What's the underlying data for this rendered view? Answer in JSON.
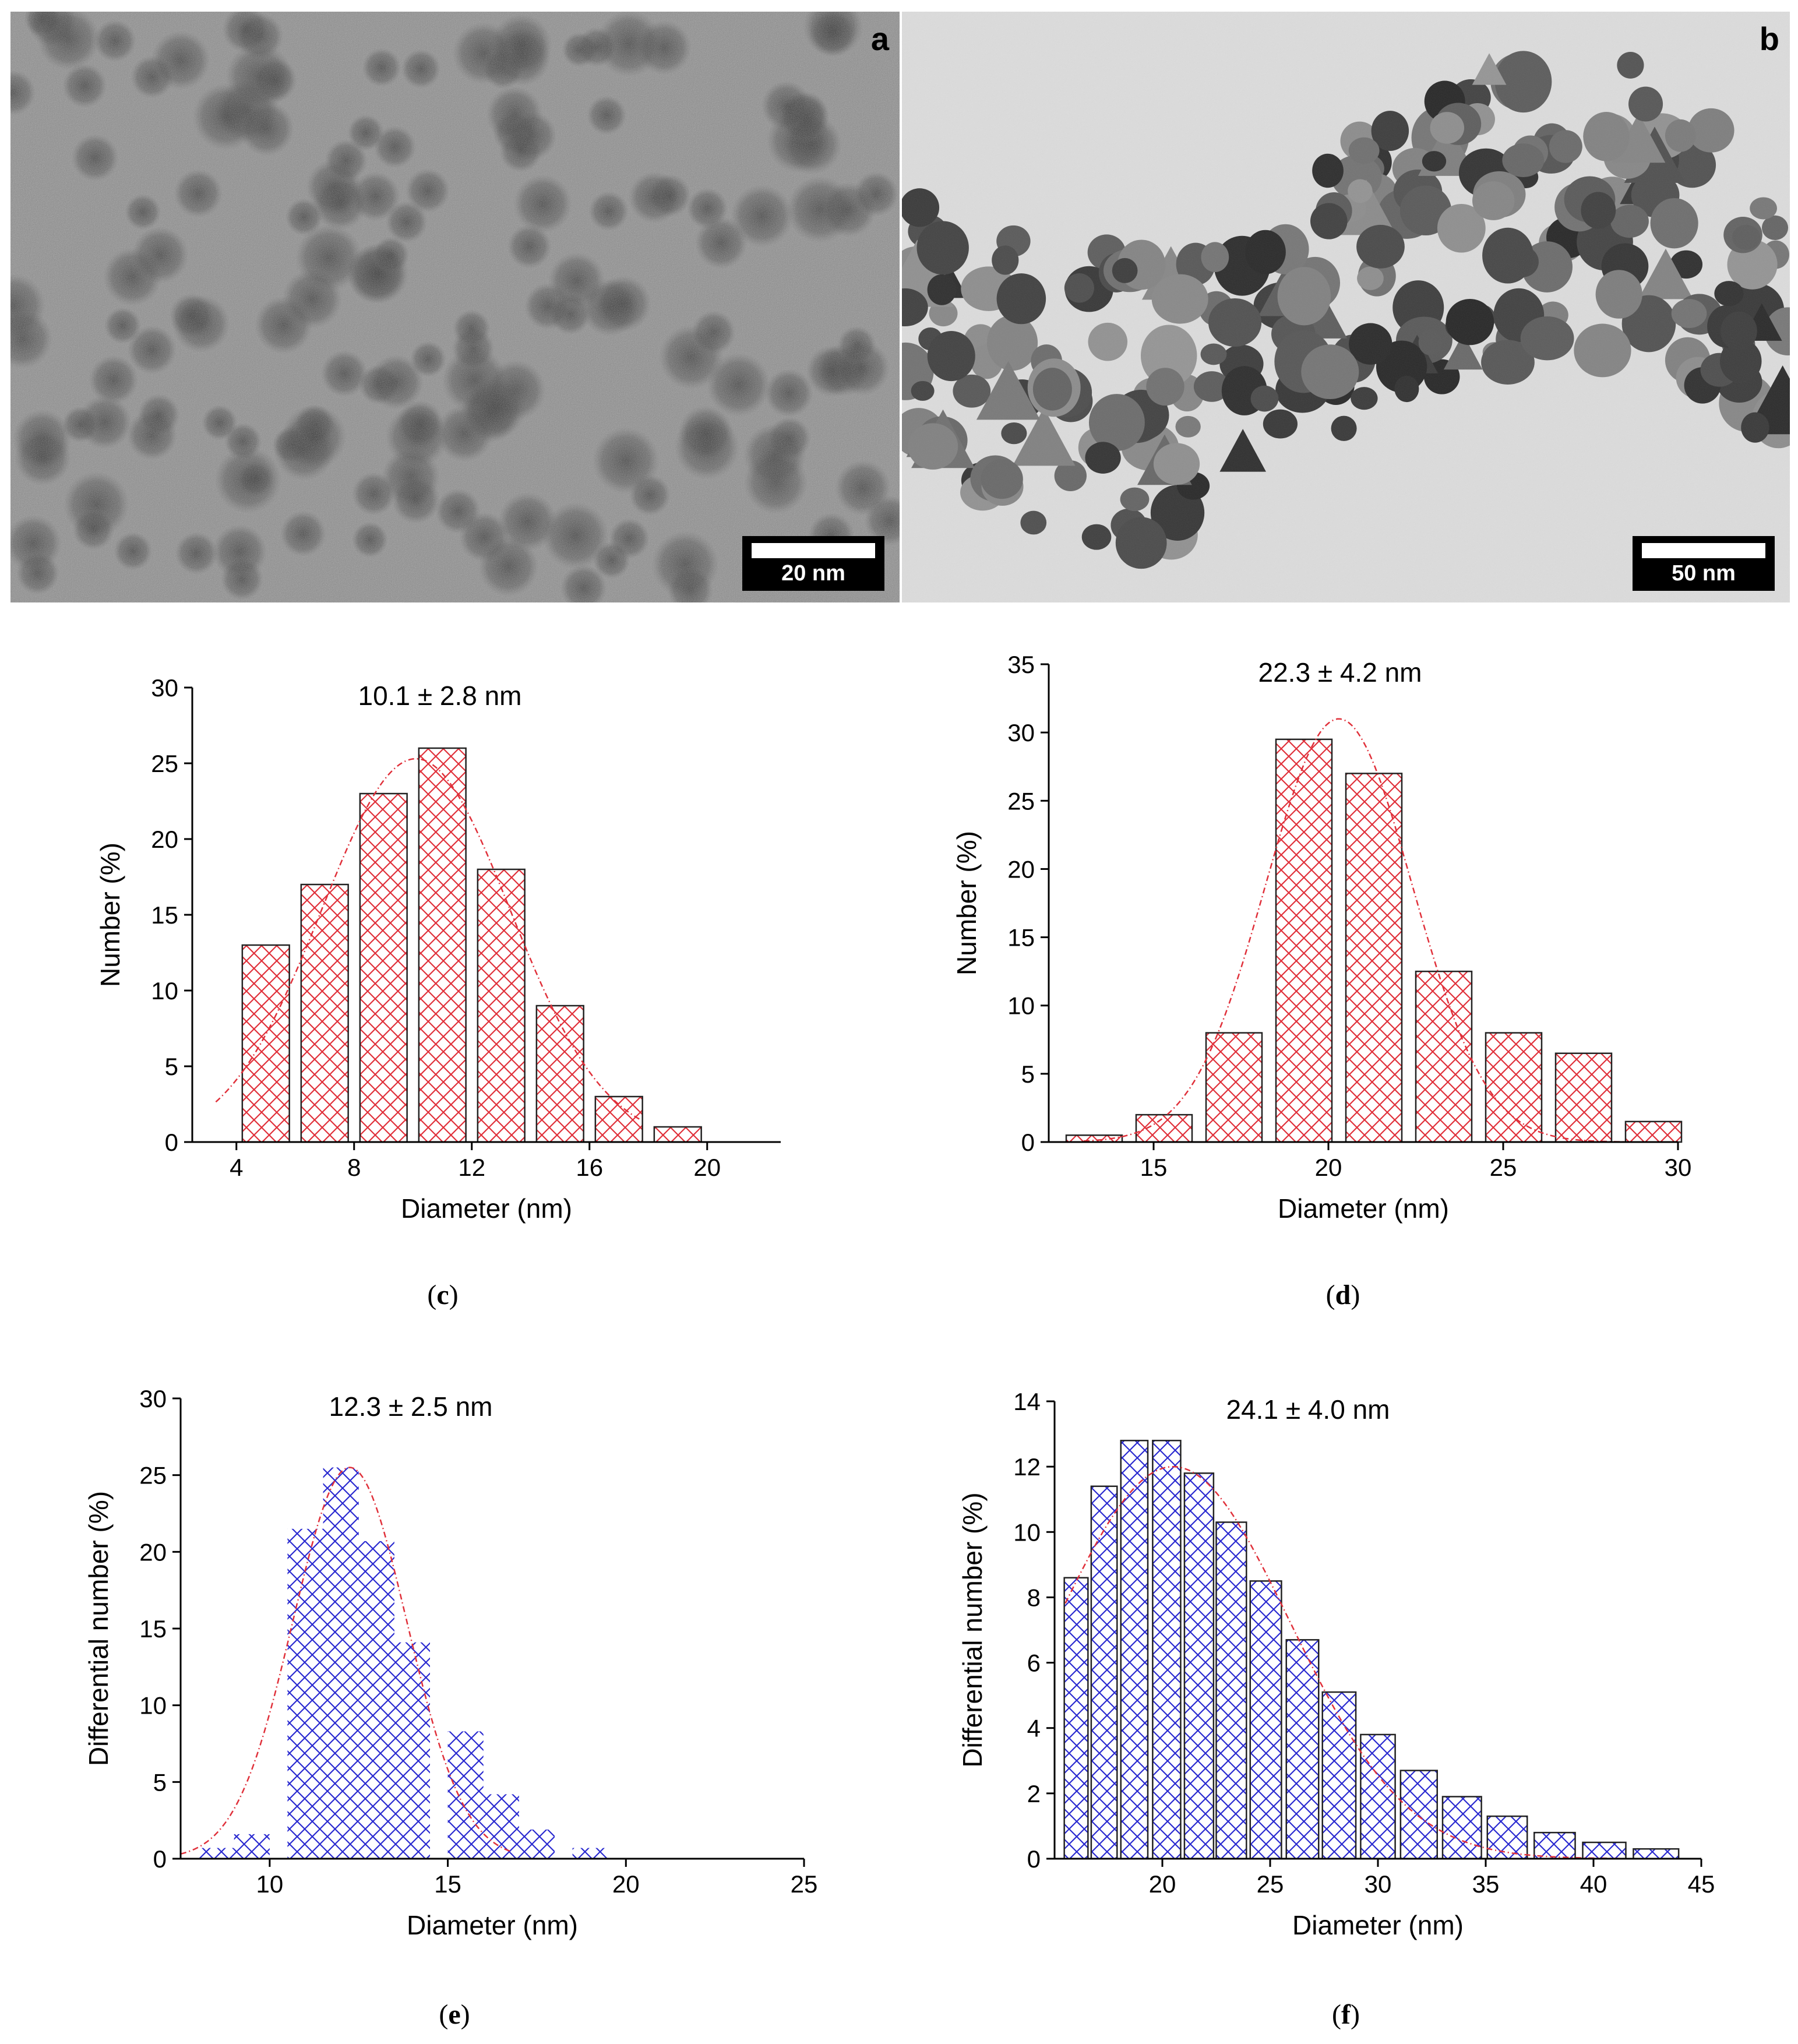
{
  "tem_images": [
    {
      "panel_label": "a",
      "scale_label": "20 nm"
    },
    {
      "panel_label": "b",
      "scale_label": "50 nm"
    }
  ],
  "captions": [
    "c",
    "d",
    "e",
    "f"
  ],
  "chart_data": [
    {
      "panel": "c",
      "type": "bar",
      "title": "10.1 ± 2.8 nm",
      "xlabel": "Diameter (nm)",
      "ylabel": "Number (%)",
      "xlim": [
        2.5,
        22.5
      ],
      "ylim": [
        0,
        30
      ],
      "xticks": [
        4,
        8,
        12,
        16,
        20
      ],
      "yticks": [
        0,
        5,
        10,
        15,
        20,
        25,
        30
      ],
      "bar_width": 1.6,
      "x": [
        5.0,
        7.0,
        9.0,
        11.0,
        13.0,
        15.0,
        17.0,
        19.0
      ],
      "values": [
        13,
        17,
        23,
        26,
        18,
        9,
        3,
        1
      ],
      "fit": {
        "mu": 10.1,
        "sigma": 3.2,
        "peak": 25.3,
        "from": 3.3,
        "to": 17.7
      },
      "colors": {
        "hatch": "#e0303a",
        "fit": "#e0303a"
      }
    },
    {
      "panel": "d",
      "type": "bar",
      "title": "22.3 ± 4.2 nm",
      "xlabel": "Diameter (nm)",
      "ylabel": "Number (%)",
      "xlim": [
        12,
        30
      ],
      "ylim": [
        0,
        35
      ],
      "xticks": [
        15,
        20,
        25,
        30
      ],
      "yticks": [
        0,
        5,
        10,
        15,
        20,
        25,
        30,
        35
      ],
      "bar_width": 1.6,
      "x": [
        13.3,
        15.3,
        17.3,
        19.3,
        21.3,
        23.3,
        25.3,
        27.3,
        29.3
      ],
      "values": [
        0.5,
        2,
        8,
        29.5,
        27,
        12.5,
        8,
        6.5,
        1.5
      ],
      "fit": {
        "mu": 20.3,
        "sigma": 2.1,
        "peak": 31,
        "from": 13.0,
        "to": 29.5
      },
      "colors": {
        "hatch": "#e0303a",
        "fit": "#e0303a"
      }
    },
    {
      "panel": "e",
      "type": "bar",
      "title": "12.3 ± 2.5 nm",
      "xlabel": "Diameter (nm)",
      "ylabel": "Differential number (%)",
      "xlim": [
        7.5,
        25
      ],
      "ylim": [
        0,
        30
      ],
      "xticks": [
        10,
        15,
        20,
        25
      ],
      "yticks": [
        0,
        5,
        10,
        15,
        20,
        25,
        30
      ],
      "bar_width": 1.0,
      "x": [
        8.5,
        9.5,
        11.0,
        12.0,
        13.0,
        14.0,
        15.5,
        16.5,
        17.5,
        19.0
      ],
      "widths": [
        1.0,
        1.0,
        1.0,
        1.0,
        1.0,
        1.0,
        1.0,
        1.0,
        1.0,
        1.0
      ],
      "values": [
        0.7,
        1.6,
        21.5,
        25.5,
        20.7,
        14.1,
        8.3,
        4.2,
        1.9,
        0.7
      ],
      "fit": {
        "mu": 12.25,
        "sigma": 1.6,
        "peak": 25.5,
        "from": 7.5,
        "to": 16.8
      },
      "colors": {
        "hatch": "#2a2ad0",
        "fit": "#e0303a"
      }
    },
    {
      "panel": "f",
      "type": "bar",
      "title": "24.1 ± 4.0 nm",
      "xlabel": "Diameter (nm)",
      "ylabel": "Differential number (%)",
      "xlim": [
        15,
        45
      ],
      "ylim": [
        0,
        14
      ],
      "xticks": [
        20,
        25,
        30,
        35,
        40,
        45
      ],
      "yticks": [
        0,
        2,
        4,
        6,
        8,
        10,
        12,
        14
      ],
      "x": [
        16.0,
        17.3,
        18.7,
        20.2,
        21.7,
        23.2,
        24.8,
        26.5,
        28.2,
        30.0,
        31.9,
        33.9,
        36.0,
        38.2,
        40.5,
        42.9
      ],
      "widths": [
        1.1,
        1.2,
        1.25,
        1.3,
        1.35,
        1.4,
        1.45,
        1.5,
        1.55,
        1.6,
        1.7,
        1.8,
        1.85,
        1.9,
        2.0,
        2.1
      ],
      "values": [
        8.6,
        11.4,
        12.8,
        12.8,
        11.8,
        10.3,
        8.5,
        6.7,
        5.1,
        3.8,
        2.7,
        1.9,
        1.3,
        0.8,
        0.5,
        0.3
      ],
      "fit": {
        "mu": 20.5,
        "sigma": 5.4,
        "peak": 12.0,
        "from": 15.5,
        "to": 43.5
      },
      "colors": {
        "hatch": "#2a2ad0",
        "fit": "#e0303a"
      }
    }
  ]
}
